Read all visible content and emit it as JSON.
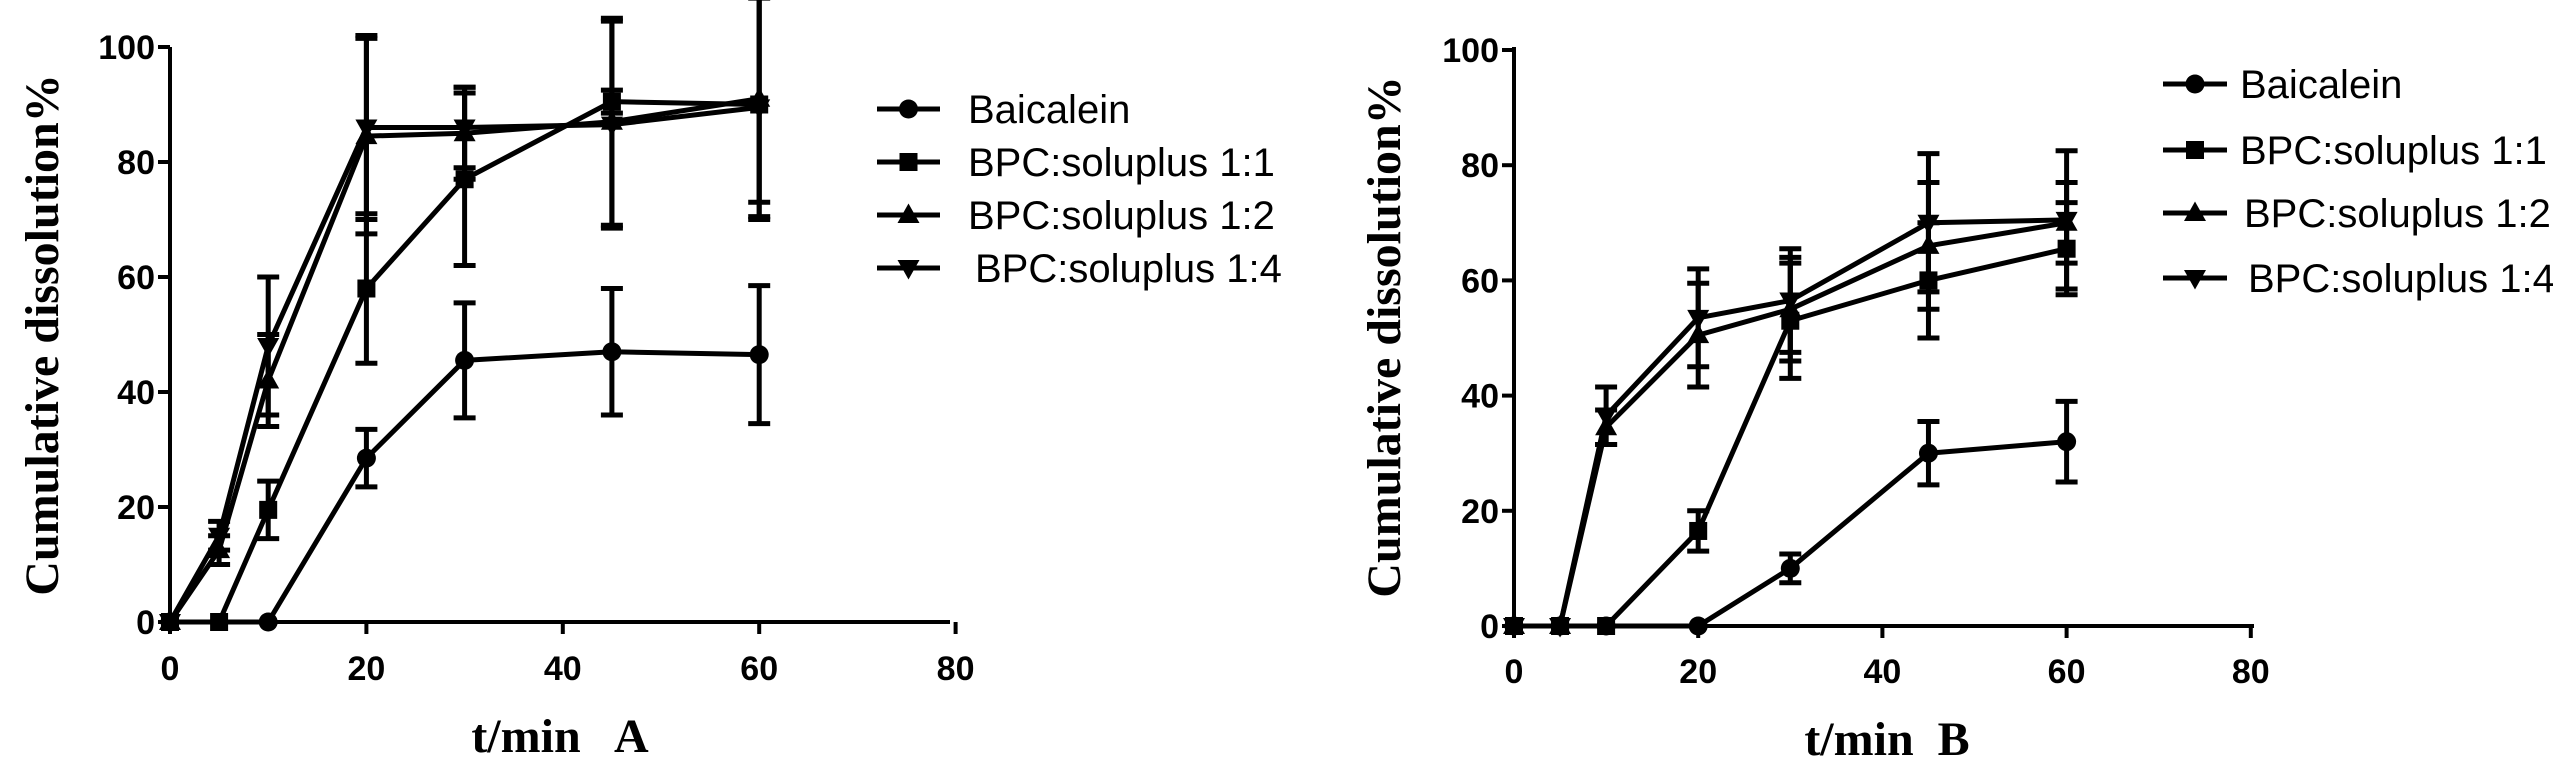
{
  "chart_data": [
    {
      "type": "line",
      "panel": "A",
      "xlabel": "t/min   A",
      "ylabel": "Cumulative dissolution%",
      "xlim": [
        0,
        80
      ],
      "ylim": [
        0,
        100
      ],
      "xticks": [
        0,
        20,
        40,
        60,
        80
      ],
      "yticks": [
        0,
        20,
        40,
        60,
        80,
        100
      ],
      "legend_position": "right",
      "series": [
        {
          "name": "Baicalein",
          "marker": "circle",
          "x": [
            0,
            10,
            20,
            30,
            45,
            60
          ],
          "y": [
            0,
            0,
            28.5,
            45.5,
            47,
            46.5
          ],
          "err": [
            0,
            0,
            5,
            10,
            11,
            12
          ]
        },
        {
          "name": "BPC:soluplus 1:1",
          "marker": "square",
          "x": [
            0,
            5,
            10,
            20,
            30,
            45,
            60
          ],
          "y": [
            0,
            0,
            19.5,
            58,
            77,
            90.5,
            90
          ],
          "err": [
            0,
            0,
            5,
            13,
            15,
            2,
            20
          ]
        },
        {
          "name": "BPC:soluplus 1:2",
          "marker": "triangle-up",
          "x": [
            0,
            5,
            10,
            20,
            30,
            45,
            60
          ],
          "y": [
            0,
            12.5,
            42,
            84.5,
            85,
            87,
            91
          ],
          "err": [
            0,
            2.5,
            8,
            17,
            8,
            18,
            18
          ]
        },
        {
          "name": "BPC:soluplus 1:4",
          "marker": "triangle-down",
          "x": [
            0,
            5,
            10,
            20,
            30,
            45,
            60
          ],
          "y": [
            0,
            15,
            48,
            86,
            86,
            86.5,
            89.5
          ],
          "err": [
            0,
            2.5,
            12,
            16,
            7,
            18,
            19
          ]
        }
      ]
    },
    {
      "type": "line",
      "panel": "B",
      "xlabel": "t/min  B",
      "ylabel": "Cumulative dissolution%",
      "xlim": [
        0,
        80
      ],
      "ylim": [
        0,
        100
      ],
      "xticks": [
        0,
        20,
        40,
        60,
        80
      ],
      "yticks": [
        0,
        20,
        40,
        60,
        80,
        100
      ],
      "legend_position": "right",
      "series": [
        {
          "name": "Baicalein",
          "marker": "circle",
          "x": [
            0,
            5,
            10,
            20,
            30,
            45,
            60
          ],
          "y": [
            0,
            0,
            0,
            0,
            10,
            30,
            32
          ],
          "err": [
            0,
            0,
            0,
            0,
            2.5,
            5.5,
            7
          ]
        },
        {
          "name": "BPC:soluplus 1:1",
          "marker": "square",
          "x": [
            0,
            5,
            10,
            20,
            30,
            45,
            60
          ],
          "y": [
            0,
            0,
            0,
            16.5,
            53,
            60,
            65.5
          ],
          "err": [
            0,
            0,
            0,
            3.5,
            10,
            10,
            8
          ]
        },
        {
          "name": "BPC:soluplus 1:2",
          "marker": "triangle-up",
          "x": [
            0,
            5,
            10,
            20,
            30,
            45,
            60
          ],
          "y": [
            0,
            0,
            34.5,
            50.5,
            55,
            66,
            70
          ],
          "err": [
            0,
            0,
            3,
            9,
            9,
            11,
            7
          ]
        },
        {
          "name": "BPC:soluplus 1:4",
          "marker": "triangle-down",
          "x": [
            0,
            5,
            10,
            20,
            30,
            45,
            60
          ],
          "y": [
            0,
            0,
            36.5,
            53.5,
            56.5,
            70,
            70.5
          ],
          "err": [
            0,
            0,
            5,
            8.5,
            9,
            12,
            12
          ]
        }
      ]
    }
  ]
}
